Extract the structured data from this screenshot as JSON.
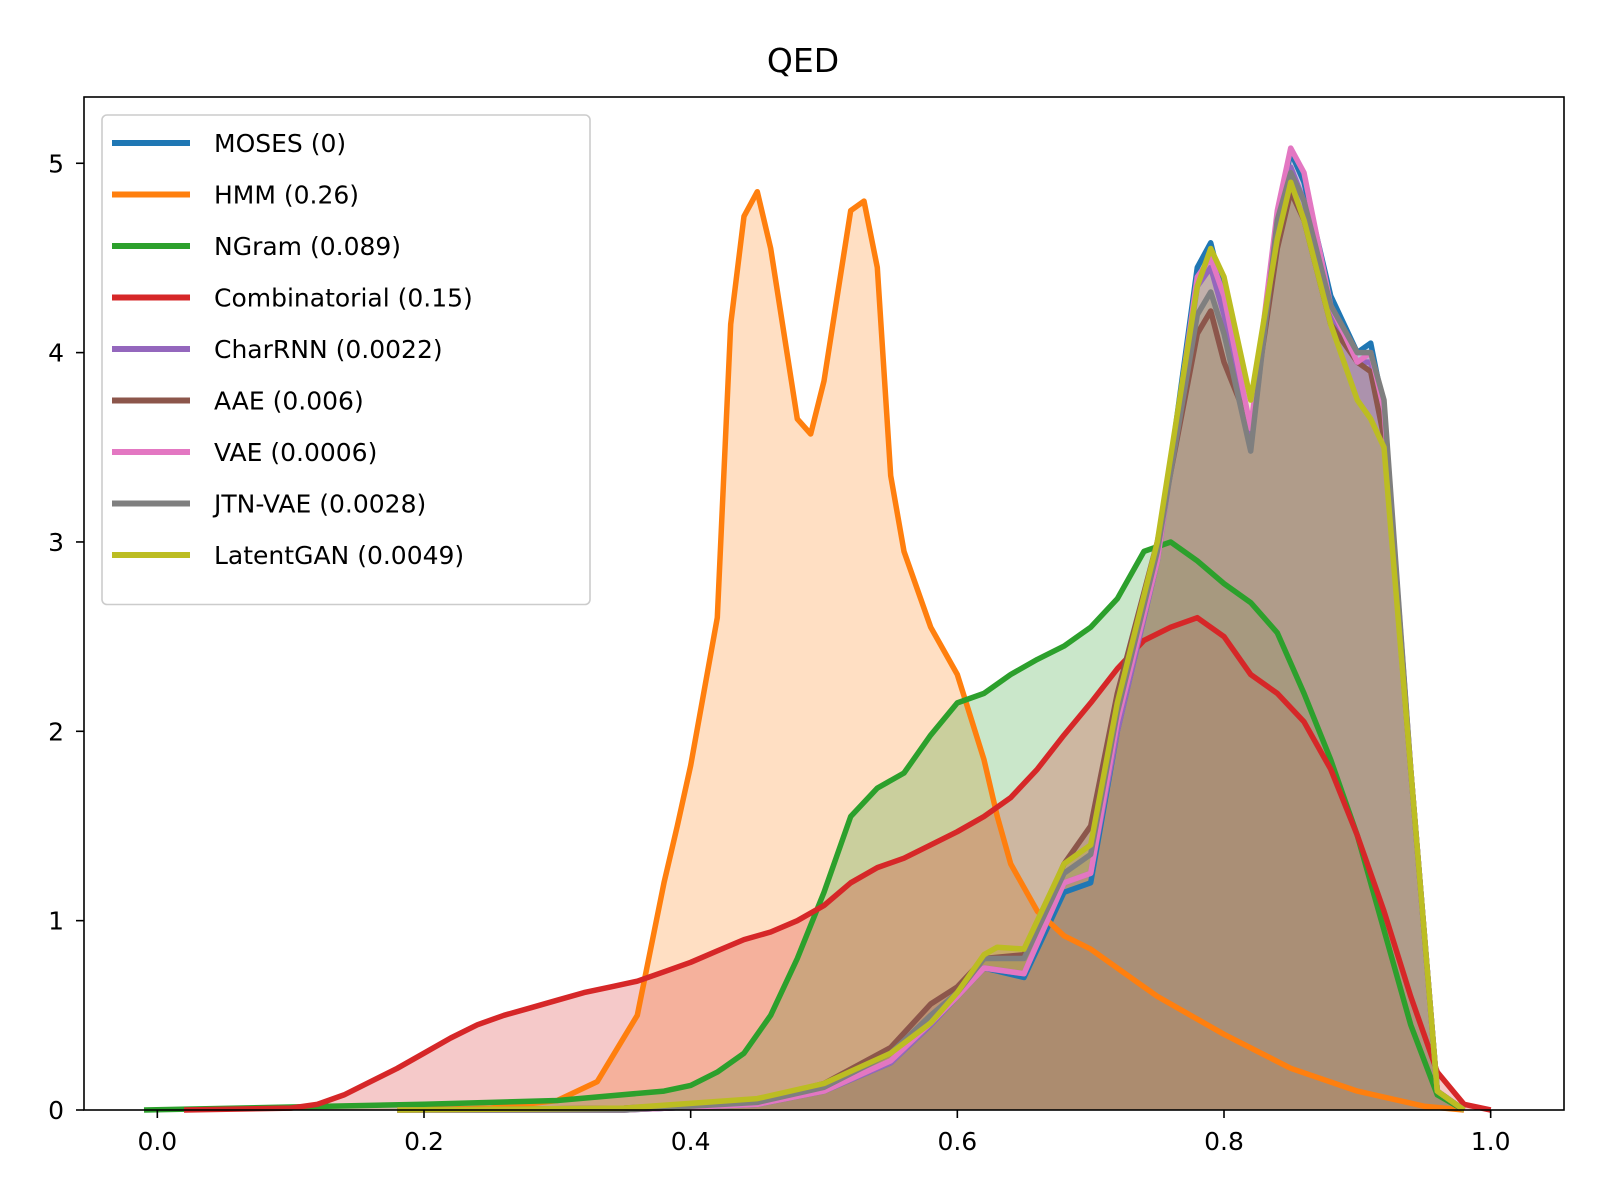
{
  "chart_data": {
    "type": "area",
    "title": "QED",
    "xlabel": "",
    "ylabel": "",
    "xlim": [
      -0.055,
      1.055
    ],
    "ylim": [
      0,
      5.35
    ],
    "xticks": [
      0.0,
      0.2,
      0.4,
      0.6,
      0.8,
      1.0
    ],
    "xtick_labels": [
      "0.0",
      "0.2",
      "0.4",
      "0.6",
      "0.8",
      "1.0"
    ],
    "yticks": [
      0,
      1,
      2,
      3,
      4,
      5
    ],
    "ytick_labels": [
      "0",
      "1",
      "2",
      "3",
      "4",
      "5"
    ],
    "legend_position": "top-left",
    "series": [
      {
        "name": "MOSES (0)",
        "color": "#1f77b4",
        "x": [
          0.18,
          0.35,
          0.45,
          0.5,
          0.55,
          0.58,
          0.6,
          0.62,
          0.65,
          0.68,
          0.7,
          0.72,
          0.75,
          0.78,
          0.79,
          0.8,
          0.82,
          0.84,
          0.85,
          0.86,
          0.88,
          0.9,
          0.91,
          0.92,
          0.94,
          0.96,
          0.98
        ],
        "y": [
          0,
          0,
          0.03,
          0.1,
          0.25,
          0.45,
          0.6,
          0.75,
          0.7,
          1.15,
          1.2,
          2.0,
          2.9,
          4.45,
          4.58,
          4.3,
          3.5,
          4.7,
          5.06,
          4.9,
          4.3,
          4.0,
          4.05,
          3.7,
          1.8,
          0.1,
          0
        ]
      },
      {
        "name": "HMM (0.26)",
        "color": "#ff7f0e",
        "x": [
          0.18,
          0.25,
          0.3,
          0.33,
          0.36,
          0.38,
          0.39,
          0.4,
          0.42,
          0.43,
          0.44,
          0.45,
          0.46,
          0.47,
          0.48,
          0.49,
          0.5,
          0.51,
          0.52,
          0.53,
          0.54,
          0.55,
          0.56,
          0.58,
          0.6,
          0.62,
          0.63,
          0.64,
          0.66,
          0.68,
          0.7,
          0.75,
          0.8,
          0.85,
          0.9,
          0.95,
          0.98
        ],
        "y": [
          0,
          0.01,
          0.05,
          0.15,
          0.5,
          1.2,
          1.5,
          1.82,
          2.6,
          4.15,
          4.72,
          4.85,
          4.55,
          4.1,
          3.65,
          3.57,
          3.85,
          4.3,
          4.75,
          4.8,
          4.45,
          3.35,
          2.95,
          2.55,
          2.3,
          1.85,
          1.55,
          1.3,
          1.05,
          0.92,
          0.85,
          0.6,
          0.4,
          0.22,
          0.1,
          0.02,
          0
        ]
      },
      {
        "name": "NGram (0.089)",
        "color": "#2ca02c",
        "x": [
          -0.01,
          0.2,
          0.3,
          0.38,
          0.4,
          0.42,
          0.44,
          0.46,
          0.48,
          0.5,
          0.52,
          0.54,
          0.56,
          0.58,
          0.6,
          0.62,
          0.64,
          0.66,
          0.68,
          0.7,
          0.72,
          0.74,
          0.76,
          0.78,
          0.8,
          0.82,
          0.84,
          0.86,
          0.88,
          0.9,
          0.92,
          0.94,
          0.96,
          0.98
        ],
        "y": [
          0,
          0.03,
          0.05,
          0.1,
          0.13,
          0.2,
          0.3,
          0.5,
          0.8,
          1.15,
          1.55,
          1.7,
          1.78,
          1.98,
          2.15,
          2.2,
          2.3,
          2.38,
          2.45,
          2.55,
          2.7,
          2.95,
          3.0,
          2.9,
          2.78,
          2.68,
          2.52,
          2.2,
          1.85,
          1.45,
          0.95,
          0.45,
          0.08,
          0
        ]
      },
      {
        "name": "Combinatorial (0.15)",
        "color": "#d62728",
        "x": [
          0.02,
          0.1,
          0.12,
          0.14,
          0.16,
          0.18,
          0.2,
          0.22,
          0.24,
          0.26,
          0.28,
          0.3,
          0.32,
          0.34,
          0.36,
          0.38,
          0.4,
          0.42,
          0.44,
          0.46,
          0.48,
          0.5,
          0.52,
          0.54,
          0.56,
          0.58,
          0.6,
          0.62,
          0.64,
          0.66,
          0.68,
          0.7,
          0.72,
          0.74,
          0.76,
          0.78,
          0.8,
          0.82,
          0.84,
          0.86,
          0.88,
          0.9,
          0.92,
          0.94,
          0.96,
          0.98,
          1.0
        ],
        "y": [
          0,
          0.01,
          0.03,
          0.08,
          0.15,
          0.22,
          0.3,
          0.38,
          0.45,
          0.5,
          0.54,
          0.58,
          0.62,
          0.65,
          0.68,
          0.73,
          0.78,
          0.84,
          0.9,
          0.94,
          1.0,
          1.08,
          1.2,
          1.28,
          1.33,
          1.4,
          1.47,
          1.55,
          1.65,
          1.8,
          1.98,
          2.15,
          2.33,
          2.48,
          2.55,
          2.6,
          2.5,
          2.3,
          2.2,
          2.05,
          1.8,
          1.45,
          1.05,
          0.6,
          0.2,
          0.03,
          0
        ]
      },
      {
        "name": "CharRNN (0.0022)",
        "color": "#9467bd",
        "x": [
          0.18,
          0.35,
          0.45,
          0.5,
          0.55,
          0.58,
          0.6,
          0.62,
          0.65,
          0.68,
          0.7,
          0.72,
          0.75,
          0.78,
          0.79,
          0.8,
          0.82,
          0.84,
          0.85,
          0.86,
          0.88,
          0.9,
          0.91,
          0.92,
          0.94,
          0.96,
          0.98
        ],
        "y": [
          0,
          0,
          0.03,
          0.1,
          0.25,
          0.45,
          0.6,
          0.75,
          0.72,
          1.2,
          1.25,
          2.0,
          2.9,
          4.35,
          4.45,
          4.2,
          3.55,
          4.65,
          4.98,
          4.8,
          4.2,
          3.95,
          3.95,
          3.6,
          1.8,
          0.1,
          0
        ]
      },
      {
        "name": "AAE (0.006)",
        "color": "#8c564b",
        "x": [
          0.18,
          0.35,
          0.45,
          0.5,
          0.55,
          0.58,
          0.6,
          0.62,
          0.65,
          0.68,
          0.7,
          0.72,
          0.75,
          0.78,
          0.79,
          0.8,
          0.82,
          0.84,
          0.85,
          0.86,
          0.88,
          0.9,
          0.91,
          0.92,
          0.94,
          0.96,
          0.98
        ],
        "y": [
          0,
          0.01,
          0.05,
          0.14,
          0.33,
          0.56,
          0.65,
          0.8,
          0.82,
          1.3,
          1.5,
          2.2,
          3.0,
          4.1,
          4.22,
          3.95,
          3.6,
          4.55,
          4.85,
          4.7,
          4.15,
          3.95,
          3.9,
          3.55,
          1.8,
          0.1,
          0
        ]
      },
      {
        "name": "VAE (0.0006)",
        "color": "#e377c2",
        "x": [
          0.18,
          0.35,
          0.45,
          0.5,
          0.55,
          0.58,
          0.6,
          0.62,
          0.65,
          0.68,
          0.7,
          0.72,
          0.75,
          0.78,
          0.79,
          0.8,
          0.82,
          0.84,
          0.85,
          0.86,
          0.88,
          0.9,
          0.91,
          0.92,
          0.94,
          0.96,
          0.98
        ],
        "y": [
          0,
          0,
          0.03,
          0.1,
          0.26,
          0.46,
          0.6,
          0.75,
          0.72,
          1.2,
          1.25,
          2.05,
          2.9,
          4.4,
          4.5,
          4.3,
          3.6,
          4.75,
          5.08,
          4.95,
          4.25,
          3.95,
          4.0,
          3.7,
          1.8,
          0.1,
          0
        ]
      },
      {
        "name": "JTN-VAE (0.0028)",
        "color": "#7f7f7f",
        "x": [
          0.18,
          0.35,
          0.45,
          0.5,
          0.55,
          0.58,
          0.6,
          0.62,
          0.65,
          0.68,
          0.7,
          0.72,
          0.75,
          0.78,
          0.79,
          0.8,
          0.82,
          0.84,
          0.85,
          0.86,
          0.88,
          0.9,
          0.91,
          0.92,
          0.94,
          0.96,
          0.98
        ],
        "y": [
          0,
          0,
          0.04,
          0.12,
          0.3,
          0.5,
          0.62,
          0.8,
          0.8,
          1.25,
          1.35,
          2.1,
          2.95,
          4.2,
          4.32,
          4.1,
          3.48,
          4.7,
          4.95,
          4.8,
          4.25,
          4.0,
          4.0,
          3.75,
          1.8,
          0.1,
          0
        ]
      },
      {
        "name": "LatentGAN (0.0049)",
        "color": "#bcbd22",
        "x": [
          0.18,
          0.35,
          0.45,
          0.5,
          0.55,
          0.58,
          0.6,
          0.62,
          0.63,
          0.65,
          0.68,
          0.7,
          0.72,
          0.75,
          0.78,
          0.79,
          0.8,
          0.82,
          0.84,
          0.85,
          0.86,
          0.88,
          0.9,
          0.91,
          0.92,
          0.94,
          0.96,
          0.98
        ],
        "y": [
          0,
          0.01,
          0.06,
          0.14,
          0.3,
          0.46,
          0.62,
          0.82,
          0.86,
          0.85,
          1.3,
          1.4,
          2.15,
          3.0,
          4.35,
          4.55,
          4.4,
          3.75,
          4.6,
          4.9,
          4.7,
          4.15,
          3.75,
          3.65,
          3.5,
          1.8,
          0.1,
          0
        ]
      }
    ]
  }
}
